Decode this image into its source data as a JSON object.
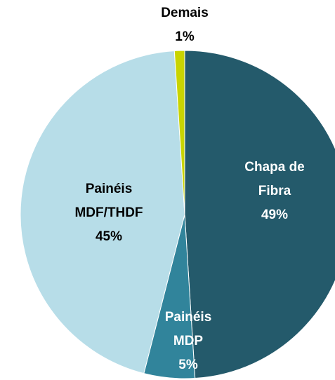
{
  "chart_data": {
    "type": "pie",
    "categories": [
      "Chapa de Fibra",
      "Painéis MDP",
      "Painéis MDF/THDF",
      "Demais"
    ],
    "values": [
      49,
      5,
      45,
      1
    ],
    "value_labels": [
      "49%",
      "5%",
      "45%",
      "1%"
    ],
    "colors": [
      "#245a6b",
      "#31849b",
      "#b7dde8",
      "#c9d400"
    ]
  }
}
